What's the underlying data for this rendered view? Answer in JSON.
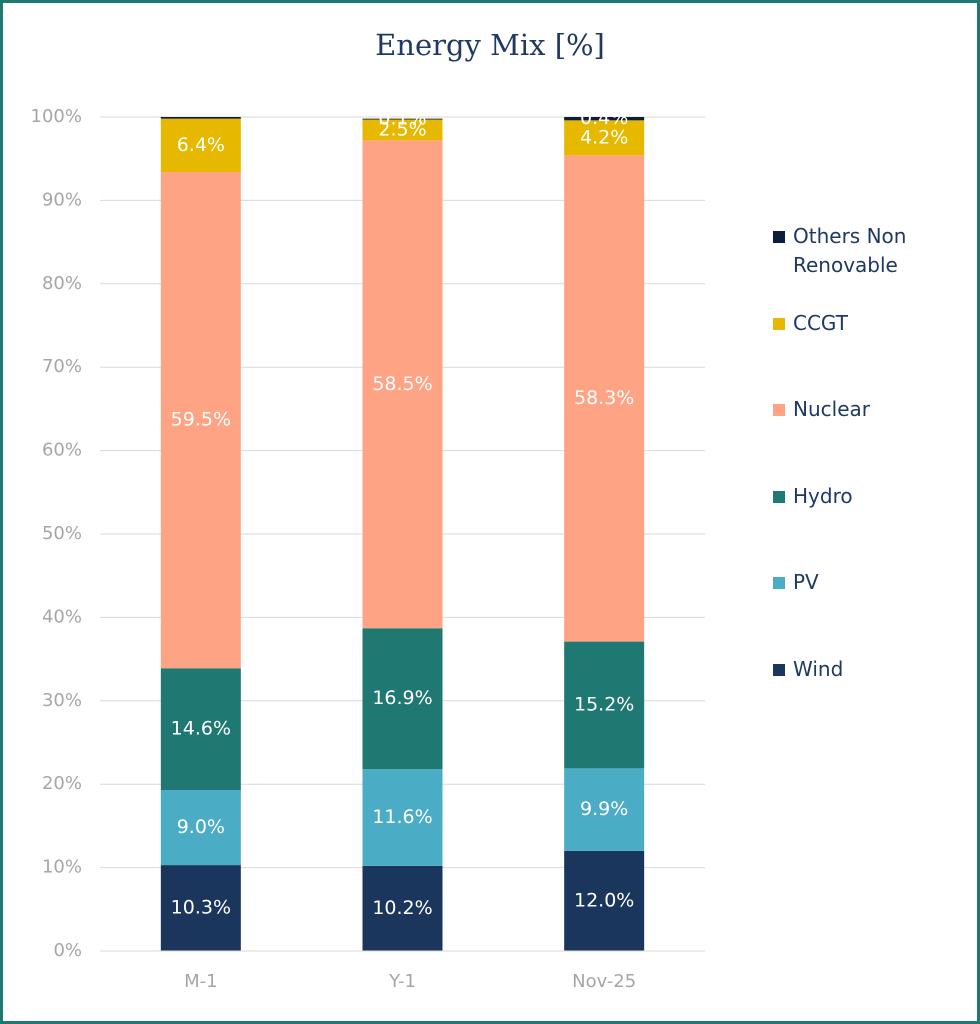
{
  "chart_data": {
    "type": "stacked_bar",
    "title": "Energy Mix [%]",
    "categories": [
      "M-1",
      "Y-1",
      "Nov-25"
    ],
    "series": [
      {
        "name": "Wind",
        "color": "#1b365d",
        "values": [
          10.3,
          10.2,
          12.0
        ],
        "value_labels": [
          "10.3%",
          "10.2%",
          "12.0%"
        ]
      },
      {
        "name": "PV",
        "color": "#4bacc6",
        "values": [
          9.0,
          11.6,
          9.9
        ],
        "value_labels": [
          "9.0%",
          "11.6%",
          "9.9%"
        ]
      },
      {
        "name": "Hydro",
        "color": "#1f7872",
        "values": [
          14.6,
          16.9,
          15.2
        ],
        "value_labels": [
          "14.6%",
          "16.9%",
          "15.2%"
        ]
      },
      {
        "name": "Nuclear",
        "color": "#ffa385",
        "values": [
          59.5,
          58.5,
          58.3
        ],
        "value_labels": [
          "59.5%",
          "58.5%",
          "58.3%"
        ]
      },
      {
        "name": "CCGT",
        "color": "#e6b800",
        "values": [
          6.4,
          2.5,
          4.2
        ],
        "value_labels": [
          "6.4%",
          "2.5%",
          "4.2%"
        ]
      },
      {
        "name": "Others Non Renovable",
        "color": "#0e1e3a",
        "values": [
          0.2,
          0.1,
          0.4
        ],
        "value_labels": [
          null,
          "0.1%",
          "0.4%"
        ]
      }
    ],
    "ylim": [
      0,
      100
    ],
    "yticks": [
      {
        "value": 0,
        "label": "0%"
      },
      {
        "value": 10,
        "label": "10%"
      },
      {
        "value": 20,
        "label": "20%"
      },
      {
        "value": 30,
        "label": "30%"
      },
      {
        "value": 40,
        "label": "40%"
      },
      {
        "value": 50,
        "label": "50%"
      },
      {
        "value": 60,
        "label": "60%"
      },
      {
        "value": 70,
        "label": "70%"
      },
      {
        "value": 80,
        "label": "80%"
      },
      {
        "value": 90,
        "label": "90%"
      },
      {
        "value": 100,
        "label": "100%"
      }
    ],
    "grid": true,
    "legend": "right"
  }
}
